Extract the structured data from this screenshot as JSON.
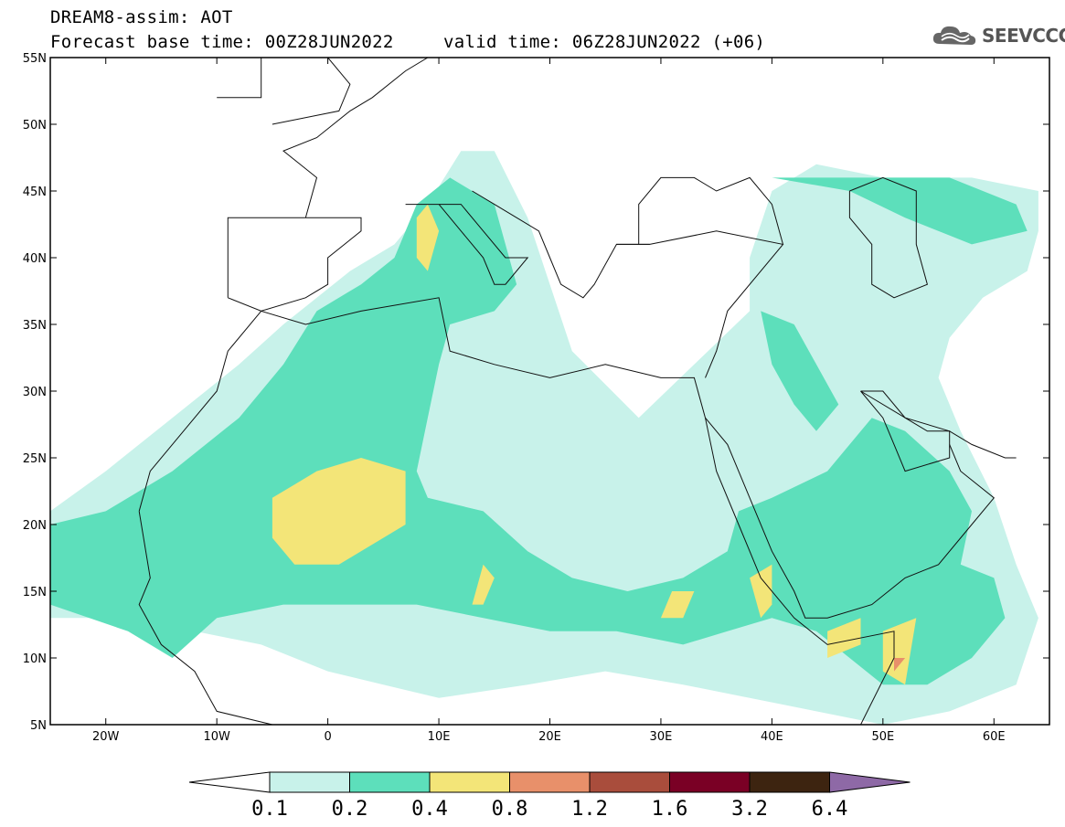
{
  "header": {
    "title": "DREAM8-assim: AOT",
    "base_time": "Forecast base time: 00Z28JUN2022",
    "valid_time": "valid time: 06Z28JUN2022 (+06)"
  },
  "logo": {
    "text": "SEEVCCC",
    "icon": "cloud-icon"
  },
  "map": {
    "lon_range": [
      -25,
      65
    ],
    "lat_range": [
      5,
      55
    ],
    "lon_ticks": [
      {
        "v": -20,
        "label": "20W"
      },
      {
        "v": -10,
        "label": "10W"
      },
      {
        "v": 0,
        "label": "0"
      },
      {
        "v": 10,
        "label": "10E"
      },
      {
        "v": 20,
        "label": "20E"
      },
      {
        "v": 30,
        "label": "30E"
      },
      {
        "v": 40,
        "label": "40E"
      },
      {
        "v": 50,
        "label": "50E"
      },
      {
        "v": 60,
        "label": "60E"
      }
    ],
    "lat_ticks": [
      {
        "v": 5,
        "label": "5N"
      },
      {
        "v": 10,
        "label": "10N"
      },
      {
        "v": 15,
        "label": "15N"
      },
      {
        "v": 20,
        "label": "20N"
      },
      {
        "v": 25,
        "label": "25N"
      },
      {
        "v": 30,
        "label": "30N"
      },
      {
        "v": 35,
        "label": "35N"
      },
      {
        "v": 40,
        "label": "40N"
      },
      {
        "v": 45,
        "label": "45N"
      },
      {
        "v": 50,
        "label": "50N"
      },
      {
        "v": 55,
        "label": "55N"
      }
    ]
  },
  "colorbar": {
    "labels": [
      "0.1",
      "0.2",
      "0.4",
      "0.8",
      "1.2",
      "1.6",
      "3.2",
      "6.4"
    ],
    "colors": [
      "#ffffff",
      "#c8f2ea",
      "#5ddfbb",
      "#f3e578",
      "#e8906a",
      "#a94d3c",
      "#7a0025",
      "#3d2410",
      "#8e69a6"
    ]
  },
  "contours": [
    {
      "level": "0.1-0.2",
      "color": "#c8f2ea",
      "regions": [
        [
          [
            -25,
            13
          ],
          [
            -18,
            13
          ],
          [
            -12,
            12
          ],
          [
            -6,
            11
          ],
          [
            0,
            9
          ],
          [
            5,
            8
          ],
          [
            10,
            7
          ],
          [
            18,
            8
          ],
          [
            25,
            9
          ],
          [
            32,
            8
          ],
          [
            38,
            7
          ],
          [
            44,
            6
          ],
          [
            50,
            5
          ],
          [
            56,
            6
          ],
          [
            62,
            8
          ],
          [
            64,
            13
          ],
          [
            62,
            17
          ],
          [
            60,
            22
          ],
          [
            57,
            27
          ],
          [
            55,
            31
          ],
          [
            56,
            34
          ],
          [
            59,
            37
          ],
          [
            63,
            39
          ],
          [
            64,
            42
          ],
          [
            64,
            45
          ],
          [
            58,
            46
          ],
          [
            50,
            46
          ],
          [
            44,
            47
          ],
          [
            40,
            45
          ],
          [
            38,
            40
          ],
          [
            38,
            36
          ],
          [
            33,
            32
          ],
          [
            28,
            28
          ],
          [
            22,
            33
          ],
          [
            20,
            38
          ],
          [
            18,
            43
          ],
          [
            15,
            48
          ],
          [
            12,
            48
          ],
          [
            9,
            44
          ],
          [
            6,
            41
          ],
          [
            2,
            39
          ],
          [
            -4,
            35
          ],
          [
            -8,
            32
          ],
          [
            -14,
            28
          ],
          [
            -20,
            24
          ],
          [
            -25,
            21
          ]
        ]
      ]
    },
    {
      "level": "0.2-0.4",
      "color": "#5ddfbb",
      "regions": [
        [
          [
            -25,
            20
          ],
          [
            -20,
            21
          ],
          [
            -14,
            24
          ],
          [
            -8,
            28
          ],
          [
            -4,
            32
          ],
          [
            -1,
            36
          ],
          [
            3,
            38
          ],
          [
            6,
            40
          ],
          [
            8,
            44
          ],
          [
            11,
            46
          ],
          [
            15,
            44
          ],
          [
            16,
            41
          ],
          [
            17,
            38
          ],
          [
            15,
            36
          ],
          [
            11,
            35
          ],
          [
            10,
            32
          ],
          [
            9,
            28
          ],
          [
            8,
            24
          ],
          [
            9,
            22
          ],
          [
            14,
            21
          ],
          [
            18,
            18
          ],
          [
            22,
            16
          ],
          [
            27,
            15
          ],
          [
            32,
            16
          ],
          [
            36,
            18
          ],
          [
            37,
            21
          ],
          [
            40,
            22
          ],
          [
            45,
            24
          ],
          [
            49,
            28
          ],
          [
            52,
            27
          ],
          [
            56,
            24
          ],
          [
            58,
            21
          ],
          [
            57,
            17
          ],
          [
            60,
            16
          ],
          [
            61,
            13
          ],
          [
            58,
            10
          ],
          [
            54,
            8
          ],
          [
            50,
            8
          ],
          [
            47,
            10
          ],
          [
            44,
            12
          ],
          [
            40,
            13
          ],
          [
            36,
            12
          ],
          [
            32,
            11
          ],
          [
            26,
            12
          ],
          [
            20,
            12
          ],
          [
            14,
            13
          ],
          [
            8,
            14
          ],
          [
            2,
            14
          ],
          [
            -4,
            14
          ],
          [
            -10,
            13
          ],
          [
            -14,
            10
          ],
          [
            -18,
            12
          ],
          [
            -25,
            14
          ]
        ],
        [
          [
            39,
            36
          ],
          [
            42,
            35
          ],
          [
            44,
            32
          ],
          [
            46,
            29
          ],
          [
            44,
            27
          ],
          [
            42,
            29
          ],
          [
            40,
            32
          ]
        ],
        [
          [
            40,
            46
          ],
          [
            44,
            46
          ],
          [
            50,
            46
          ],
          [
            56,
            46
          ],
          [
            62,
            44
          ],
          [
            63,
            42
          ],
          [
            58,
            41
          ],
          [
            52,
            43
          ],
          [
            47,
            45
          ]
        ]
      ]
    },
    {
      "level": "0.4-0.8",
      "color": "#f3e578",
      "regions": [
        [
          [
            -5,
            22
          ],
          [
            -3,
            23
          ],
          [
            -1,
            24
          ],
          [
            3,
            25
          ],
          [
            7,
            24
          ],
          [
            7,
            20
          ],
          [
            5,
            19
          ],
          [
            1,
            17
          ],
          [
            -3,
            17
          ],
          [
            -5,
            19
          ]
        ],
        [
          [
            8,
            43
          ],
          [
            9,
            44
          ],
          [
            10,
            42
          ],
          [
            9,
            39
          ],
          [
            8,
            40
          ]
        ],
        [
          [
            14,
            17
          ],
          [
            15,
            16
          ],
          [
            14,
            14
          ],
          [
            13,
            14
          ]
        ],
        [
          [
            31,
            15
          ],
          [
            33,
            15
          ],
          [
            32,
            13
          ],
          [
            30,
            13
          ]
        ],
        [
          [
            38,
            16
          ],
          [
            40,
            17
          ],
          [
            40,
            14
          ],
          [
            39,
            13
          ]
        ],
        [
          [
            45,
            12
          ],
          [
            48,
            13
          ],
          [
            48,
            11
          ],
          [
            45,
            10
          ]
        ],
        [
          [
            50,
            12
          ],
          [
            53,
            13
          ],
          [
            52,
            8
          ],
          [
            50,
            9
          ]
        ]
      ]
    },
    {
      "level": "0.8-1.2",
      "color": "#e8906a",
      "regions": [
        [
          [
            51,
            10
          ],
          [
            52,
            10
          ],
          [
            51,
            9
          ]
        ]
      ]
    }
  ],
  "coastlines": [
    {
      "name": "west-africa",
      "points": [
        [
          -17,
          21
        ],
        [
          -16,
          24
        ],
        [
          -13,
          27
        ],
        [
          -10,
          30
        ],
        [
          -9,
          33
        ],
        [
          -6,
          36
        ],
        [
          -2,
          35
        ],
        [
          3,
          36
        ],
        [
          10,
          37
        ],
        [
          11,
          33
        ],
        [
          15,
          32
        ],
        [
          20,
          31
        ],
        [
          25,
          32
        ],
        [
          30,
          31
        ],
        [
          33,
          31
        ],
        [
          34,
          28
        ],
        [
          35,
          24
        ],
        [
          37,
          20
        ],
        [
          39,
          16
        ],
        [
          42,
          13
        ],
        [
          45,
          11
        ],
        [
          51,
          12
        ],
        [
          51,
          10
        ],
        [
          48,
          5
        ]
      ]
    },
    {
      "name": "west-africa-south",
      "points": [
        [
          -17,
          21
        ],
        [
          -16,
          16
        ],
        [
          -17,
          14
        ],
        [
          -15,
          11
        ],
        [
          -12,
          9
        ],
        [
          -10,
          6
        ],
        [
          -5,
          5
        ]
      ]
    },
    {
      "name": "iberia",
      "points": [
        [
          -9,
          37
        ],
        [
          -9,
          43
        ],
        [
          -2,
          43
        ],
        [
          3,
          43
        ],
        [
          3,
          42
        ],
        [
          0,
          40
        ],
        [
          0,
          38
        ],
        [
          -2,
          37
        ],
        [
          -6,
          36
        ],
        [
          -9,
          37
        ]
      ]
    },
    {
      "name": "italy",
      "points": [
        [
          7,
          44
        ],
        [
          9,
          44
        ],
        [
          12,
          44
        ],
        [
          14,
          42
        ],
        [
          16,
          40
        ],
        [
          18,
          40
        ],
        [
          16,
          38
        ],
        [
          15,
          38
        ],
        [
          14,
          40
        ],
        [
          12,
          42
        ],
        [
          10,
          44
        ]
      ]
    },
    {
      "name": "balkans",
      "points": [
        [
          13,
          45
        ],
        [
          15,
          44
        ],
        [
          17,
          43
        ],
        [
          19,
          42
        ],
        [
          20,
          40
        ],
        [
          21,
          38
        ],
        [
          23,
          37
        ],
        [
          24,
          38
        ],
        [
          26,
          41
        ],
        [
          28,
          41
        ],
        [
          29,
          41
        ]
      ]
    },
    {
      "name": "turkey-levant",
      "points": [
        [
          26,
          41
        ],
        [
          29,
          41
        ],
        [
          35,
          42
        ],
        [
          41,
          41
        ],
        [
          36,
          36
        ],
        [
          35,
          33
        ],
        [
          34,
          31
        ]
      ]
    },
    {
      "name": "black-sea",
      "points": [
        [
          28,
          41
        ],
        [
          28,
          44
        ],
        [
          30,
          46
        ],
        [
          33,
          46
        ],
        [
          35,
          45
        ],
        [
          38,
          46
        ],
        [
          40,
          44
        ],
        [
          41,
          41
        ]
      ]
    },
    {
      "name": "red-sea-east",
      "points": [
        [
          34,
          28
        ],
        [
          36,
          26
        ],
        [
          38,
          22
        ],
        [
          40,
          18
        ],
        [
          42,
          15
        ],
        [
          43,
          13
        ],
        [
          45,
          13
        ],
        [
          49,
          14
        ],
        [
          52,
          16
        ],
        [
          55,
          17
        ],
        [
          58,
          20
        ],
        [
          60,
          22
        ],
        [
          57,
          24
        ],
        [
          56,
          26
        ]
      ]
    },
    {
      "name": "gulf",
      "points": [
        [
          48,
          30
        ],
        [
          50,
          28
        ],
        [
          51,
          26
        ],
        [
          52,
          24
        ],
        [
          56,
          25
        ],
        [
          56,
          27
        ],
        [
          54,
          27
        ],
        [
          52,
          28
        ],
        [
          50,
          30
        ],
        [
          48,
          30
        ]
      ]
    },
    {
      "name": "caspian",
      "points": [
        [
          47,
          45
        ],
        [
          50,
          46
        ],
        [
          53,
          45
        ],
        [
          53,
          41
        ],
        [
          54,
          38
        ],
        [
          51,
          37
        ],
        [
          49,
          38
        ],
        [
          49,
          41
        ],
        [
          47,
          43
        ],
        [
          47,
          45
        ]
      ]
    },
    {
      "name": "iran",
      "points": [
        [
          48,
          30
        ],
        [
          52,
          28
        ],
        [
          56,
          27
        ],
        [
          58,
          26
        ],
        [
          61,
          25
        ],
        [
          62,
          25
        ]
      ]
    },
    {
      "name": "france-north",
      "points": [
        [
          -2,
          43
        ],
        [
          -1,
          46
        ],
        [
          -4,
          48
        ],
        [
          -1,
          49
        ],
        [
          2,
          51
        ],
        [
          4,
          52
        ],
        [
          7,
          54
        ],
        [
          9,
          55
        ]
      ]
    },
    {
      "name": "uk",
      "points": [
        [
          -5,
          50
        ],
        [
          1,
          51
        ],
        [
          2,
          53
        ],
        [
          0,
          55
        ]
      ]
    },
    {
      "name": "ireland",
      "points": [
        [
          -10,
          52
        ],
        [
          -6,
          52
        ],
        [
          -6,
          55
        ]
      ]
    }
  ]
}
